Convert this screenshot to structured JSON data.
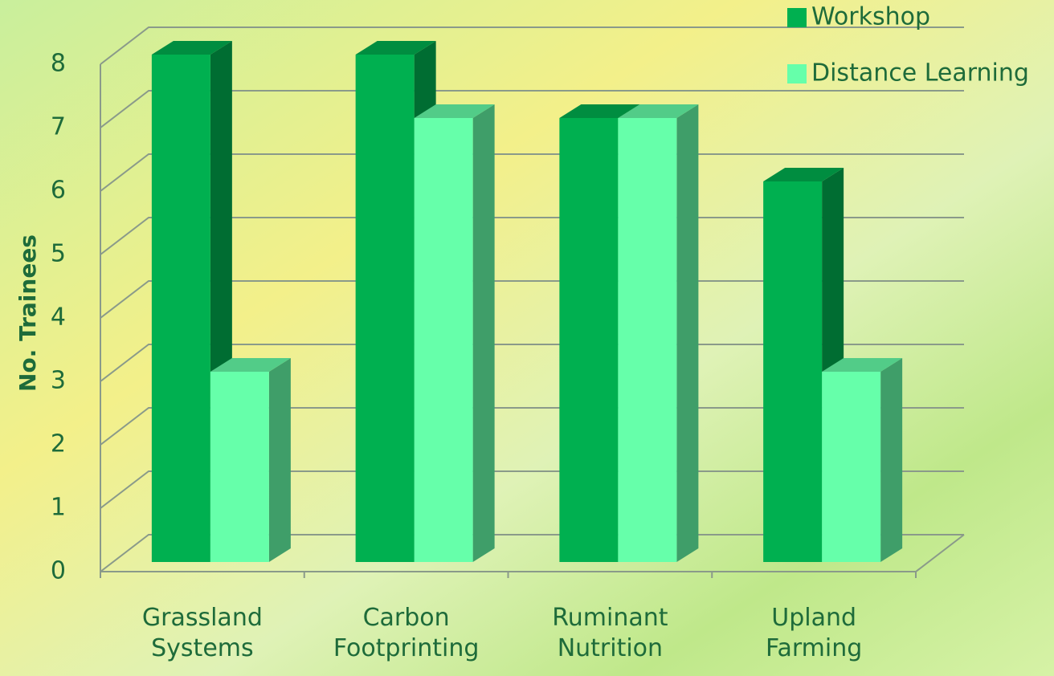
{
  "chart_data": {
    "type": "bar3d",
    "y_label": "No. Trainees",
    "categories": [
      "Grassland Systems",
      "Carbon Footprinting",
      "Ruminant Nutrition",
      "Upland Farming"
    ],
    "series": [
      {
        "name": "Workshop",
        "color": "#00b050",
        "values": [
          8,
          8,
          7,
          6
        ]
      },
      {
        "name": "Distance Learning",
        "color": "#66ffaa",
        "values": [
          3,
          7,
          7,
          3
        ]
      }
    ],
    "ylim": [
      0,
      8
    ],
    "yticks": [
      0,
      1,
      2,
      3,
      4,
      5,
      6,
      7,
      8
    ],
    "grid": true,
    "legend": "top-right"
  }
}
